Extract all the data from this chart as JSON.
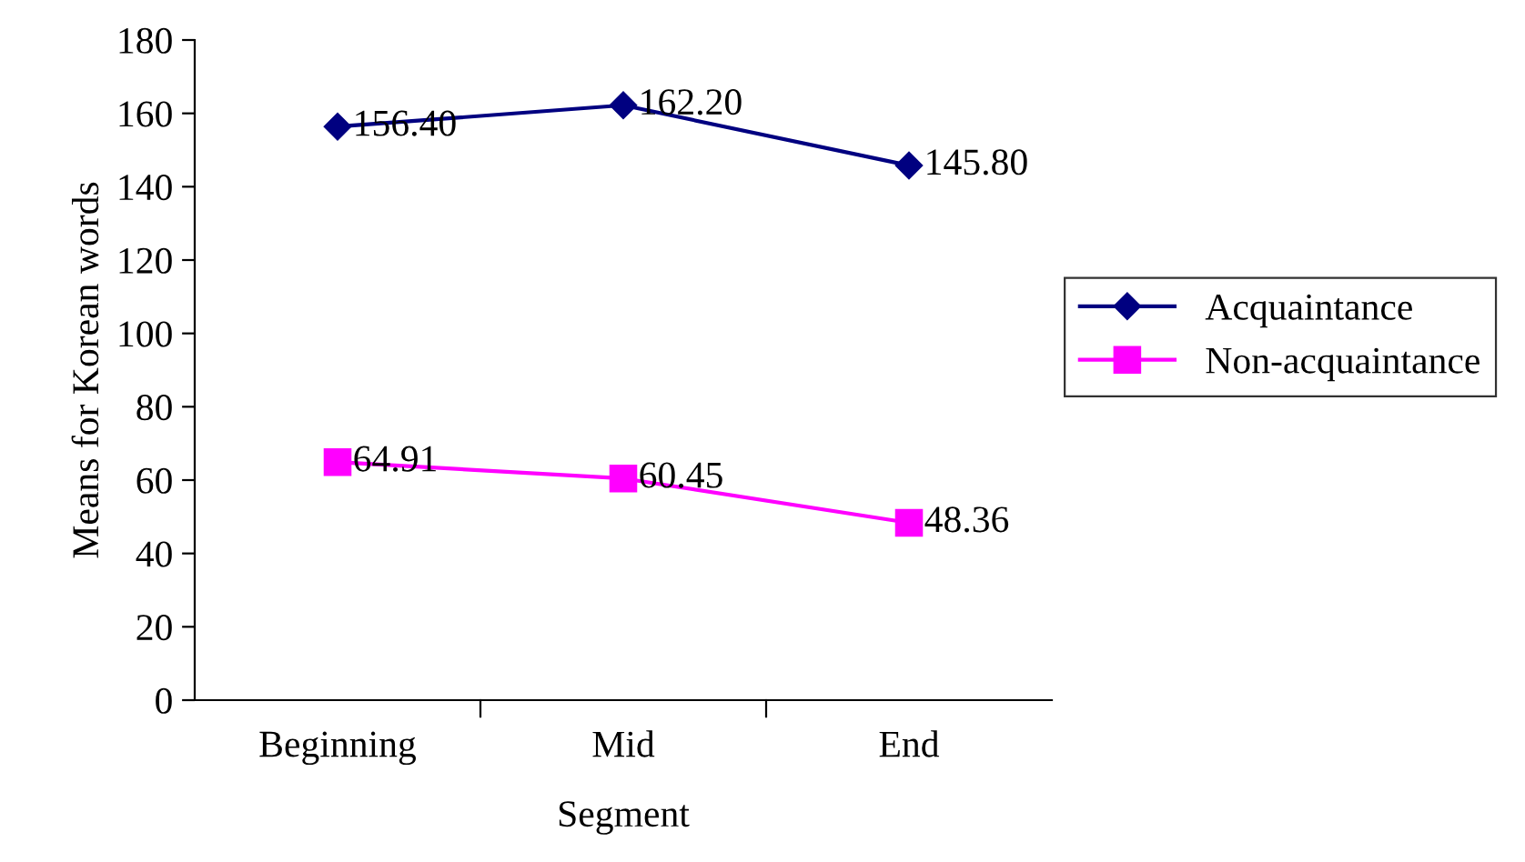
{
  "chart_data": {
    "type": "line",
    "xlabel": "Segment",
    "ylabel": "Means for Korean words",
    "categories": [
      "Beginning",
      "Mid",
      "End"
    ],
    "series": [
      {
        "name": "Acquaintance",
        "color": "#000080",
        "marker": "diamond",
        "values": [
          156.4,
          162.2,
          145.8
        ],
        "value_labels": [
          "156.40",
          "162.20",
          "145.80"
        ]
      },
      {
        "name": "Non-acquaintance",
        "color": "#ff00ff",
        "marker": "square",
        "values": [
          64.91,
          60.45,
          48.36
        ],
        "value_labels": [
          "64.91",
          "60.45",
          "48.36"
        ]
      }
    ],
    "ylim": [
      0,
      180
    ],
    "yticks": [
      0,
      20,
      40,
      60,
      80,
      100,
      120,
      140,
      160,
      180
    ],
    "grid": false,
    "legend": "right",
    "line_style": "solid"
  }
}
